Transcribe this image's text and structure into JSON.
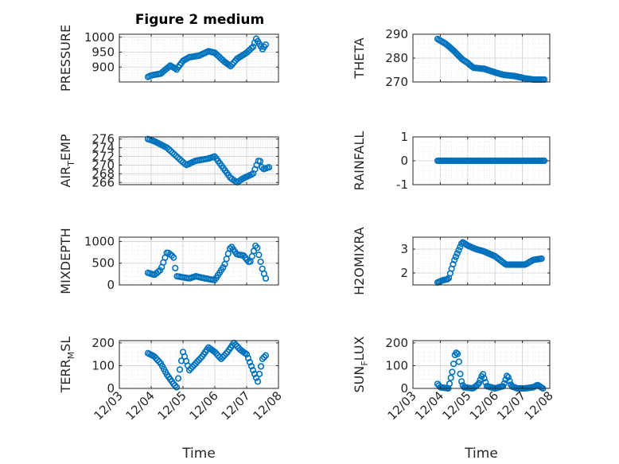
{
  "figure": {
    "title": "Figure 2 medium"
  },
  "style": {
    "marker_color": "#0072BD",
    "grid_color": "#dcdcdc",
    "axis_color": "#262626"
  },
  "chart_data": [
    {
      "type": "scatter",
      "name": "PRESSURE",
      "ylabel": {
        "main": "PRESSURE",
        "sub": "",
        "tail": ""
      },
      "ylim": [
        850,
        1010
      ],
      "yticks": [
        900,
        950,
        1000
      ],
      "ytick_labels": [
        "900",
        "950",
        "1000"
      ],
      "xlim": [
        0,
        5
      ],
      "xticks": [
        0,
        1,
        2,
        3,
        4,
        5
      ],
      "xtick_labels": [
        "12/03",
        "12/04",
        "12/05",
        "12/06",
        "12/07",
        "12/08"
      ],
      "show_xtick_labels": false,
      "xlabel": "",
      "grid": true,
      "knots": [
        [
          0.9,
          867
        ],
        [
          1.0,
          872
        ],
        [
          1.3,
          878
        ],
        [
          1.6,
          905
        ],
        [
          1.8,
          892
        ],
        [
          2.0,
          921
        ],
        [
          2.2,
          933
        ],
        [
          2.5,
          938
        ],
        [
          2.8,
          953
        ],
        [
          3.0,
          948
        ],
        [
          3.3,
          918
        ],
        [
          3.5,
          903
        ],
        [
          3.7,
          928
        ],
        [
          4.0,
          948
        ],
        [
          4.2,
          968
        ],
        [
          4.3,
          995
        ],
        [
          4.5,
          960
        ],
        [
          4.6,
          975
        ]
      ],
      "n_points": 75
    },
    {
      "type": "scatter",
      "name": "THETA",
      "ylabel": {
        "main": "THETA",
        "sub": "",
        "tail": ""
      },
      "ylim": [
        270,
        290
      ],
      "yticks": [
        270,
        280,
        290
      ],
      "ytick_labels": [
        "270",
        "280",
        "290"
      ],
      "xlim": [
        0,
        5
      ],
      "xticks": [
        0,
        1,
        2,
        3,
        4,
        5
      ],
      "xtick_labels": [
        "12/03",
        "12/04",
        "12/05",
        "12/06",
        "12/07",
        "12/08"
      ],
      "show_xtick_labels": false,
      "xlabel": "",
      "grid": true,
      "knots": [
        [
          0.9,
          288
        ],
        [
          1.2,
          286
        ],
        [
          1.5,
          283
        ],
        [
          1.8,
          279.5
        ],
        [
          2.0,
          278
        ],
        [
          2.2,
          276
        ],
        [
          2.6,
          275.5
        ],
        [
          3.0,
          274
        ],
        [
          3.3,
          273
        ],
        [
          3.7,
          272.5
        ],
        [
          4.1,
          271.5
        ],
        [
          4.4,
          271
        ],
        [
          4.8,
          271
        ]
      ],
      "n_points": 75
    },
    {
      "type": "scatter",
      "name": "AIR_TEMP",
      "ylabel": {
        "main": "AIR",
        "sub": "T",
        "tail": "EMP"
      },
      "ylim": [
        265.5,
        276.5
      ],
      "yticks": [
        266,
        268,
        270,
        272,
        274,
        276
      ],
      "ytick_labels": [
        "266",
        "268",
        "270",
        "272",
        "274",
        "276"
      ],
      "xlim": [
        0,
        5
      ],
      "xticks": [
        0,
        1,
        2,
        3,
        4,
        5
      ],
      "xtick_labels": [
        "12/03",
        "12/04",
        "12/05",
        "12/06",
        "12/07",
        "12/08"
      ],
      "show_xtick_labels": false,
      "xlabel": "",
      "grid": true,
      "knots": [
        [
          0.9,
          276
        ],
        [
          1.1,
          275.5
        ],
        [
          1.5,
          274
        ],
        [
          1.8,
          272
        ],
        [
          2.1,
          270
        ],
        [
          2.4,
          271
        ],
        [
          2.8,
          271.5
        ],
        [
          3.0,
          272
        ],
        [
          3.2,
          270
        ],
        [
          3.5,
          267
        ],
        [
          3.7,
          266
        ],
        [
          3.9,
          267
        ],
        [
          4.2,
          268
        ],
        [
          4.4,
          271.5
        ],
        [
          4.5,
          269
        ],
        [
          4.7,
          269.5
        ]
      ],
      "n_points": 70
    },
    {
      "type": "scatter",
      "name": "RAINFALL",
      "ylabel": {
        "main": "RAINFALL",
        "sub": "",
        "tail": ""
      },
      "ylim": [
        -1,
        1
      ],
      "yticks": [
        -1,
        0,
        1
      ],
      "ytick_labels": [
        "-1",
        "0",
        "1"
      ],
      "xlim": [
        0,
        5
      ],
      "xticks": [
        0,
        1,
        2,
        3,
        4,
        5
      ],
      "xtick_labels": [
        "12/03",
        "12/04",
        "12/05",
        "12/06",
        "12/07",
        "12/08"
      ],
      "show_xtick_labels": false,
      "xlabel": "",
      "grid": true,
      "knots": [
        [
          0.9,
          0
        ],
        [
          4.8,
          0
        ]
      ],
      "n_points": 80
    },
    {
      "type": "scatter",
      "name": "MIXDEPTH",
      "ylabel": {
        "main": "MIXDEPTH",
        "sub": "",
        "tail": ""
      },
      "ylim": [
        0,
        1100
      ],
      "yticks": [
        0,
        500,
        1000
      ],
      "ytick_labels": [
        "0",
        "500",
        "1000"
      ],
      "xlim": [
        0,
        5
      ],
      "xticks": [
        0,
        1,
        2,
        3,
        4,
        5
      ],
      "xtick_labels": [
        "12/03",
        "12/04",
        "12/05",
        "12/06",
        "12/07",
        "12/08"
      ],
      "show_xtick_labels": false,
      "xlabel": "",
      "grid": true,
      "knots": [
        [
          0.9,
          280
        ],
        [
          1.1,
          230
        ],
        [
          1.3,
          350
        ],
        [
          1.5,
          760
        ],
        [
          1.7,
          650
        ],
        [
          1.8,
          200
        ],
        [
          2.2,
          150
        ],
        [
          2.4,
          200
        ],
        [
          2.7,
          150
        ],
        [
          3.0,
          110
        ],
        [
          3.3,
          450
        ],
        [
          3.5,
          900
        ],
        [
          3.7,
          700
        ],
        [
          3.9,
          680
        ],
        [
          4.1,
          500
        ],
        [
          4.3,
          950
        ],
        [
          4.5,
          350
        ],
        [
          4.6,
          150
        ]
      ],
      "n_points": 70
    },
    {
      "type": "scatter",
      "name": "H2OMIXRA",
      "ylabel": {
        "main": "H2OMIXRA",
        "sub": "",
        "tail": ""
      },
      "ylim": [
        1.5,
        3.5
      ],
      "yticks": [
        2,
        3
      ],
      "ytick_labels": [
        "2",
        "3"
      ],
      "xlim": [
        0,
        5
      ],
      "xticks": [
        0,
        1,
        2,
        3,
        4,
        5
      ],
      "xtick_labels": [
        "12/03",
        "12/04",
        "12/05",
        "12/06",
        "12/07",
        "12/08"
      ],
      "show_xtick_labels": false,
      "xlabel": "",
      "grid": true,
      "knots": [
        [
          0.9,
          1.6
        ],
        [
          1.1,
          1.7
        ],
        [
          1.3,
          1.75
        ],
        [
          1.5,
          2.5
        ],
        [
          1.8,
          3.3
        ],
        [
          2.0,
          3.15
        ],
        [
          2.3,
          3.0
        ],
        [
          2.6,
          2.9
        ],
        [
          3.0,
          2.7
        ],
        [
          3.4,
          2.35
        ],
        [
          3.8,
          2.35
        ],
        [
          4.1,
          2.35
        ],
        [
          4.4,
          2.55
        ],
        [
          4.7,
          2.6
        ]
      ],
      "n_points": 75
    },
    {
      "type": "scatter",
      "name": "TERR_MSL",
      "ylabel": {
        "main": "TERR",
        "sub": "M",
        "tail": "SL"
      },
      "ylim": [
        0,
        210
      ],
      "yticks": [
        0,
        100,
        200
      ],
      "ytick_labels": [
        "0",
        "100",
        "200"
      ],
      "xlim": [
        0,
        5
      ],
      "xticks": [
        0,
        1,
        2,
        3,
        4,
        5
      ],
      "xtick_labels": [
        "12/03",
        "12/04",
        "12/05",
        "12/06",
        "12/07",
        "12/08"
      ],
      "show_xtick_labels": true,
      "xlabel": "Time",
      "grid": true,
      "knots": [
        [
          0.9,
          155
        ],
        [
          1.1,
          140
        ],
        [
          1.3,
          110
        ],
        [
          1.5,
          60
        ],
        [
          1.7,
          20
        ],
        [
          1.8,
          5
        ],
        [
          2.0,
          160
        ],
        [
          2.2,
          80
        ],
        [
          2.4,
          110
        ],
        [
          2.6,
          140
        ],
        [
          2.8,
          180
        ],
        [
          3.0,
          160
        ],
        [
          3.2,
          130
        ],
        [
          3.4,
          160
        ],
        [
          3.6,
          200
        ],
        [
          3.8,
          170
        ],
        [
          4.0,
          150
        ],
        [
          4.2,
          80
        ],
        [
          4.35,
          30
        ],
        [
          4.5,
          130
        ],
        [
          4.6,
          145
        ]
      ],
      "n_points": 75
    },
    {
      "type": "scatter",
      "name": "SUN_FLUX",
      "ylabel": {
        "main": "SUN",
        "sub": "F",
        "tail": "LUX"
      },
      "ylim": [
        0,
        210
      ],
      "yticks": [
        0,
        100,
        200
      ],
      "ytick_labels": [
        "0",
        "100",
        "200"
      ],
      "xlim": [
        0,
        5
      ],
      "xticks": [
        0,
        1,
        2,
        3,
        4,
        5
      ],
      "xtick_labels": [
        "12/03",
        "12/04",
        "12/05",
        "12/06",
        "12/07",
        "12/08"
      ],
      "show_xtick_labels": true,
      "xlabel": "Time",
      "grid": true,
      "knots": [
        [
          0.9,
          20
        ],
        [
          1.0,
          5
        ],
        [
          1.3,
          0
        ],
        [
          1.45,
          80
        ],
        [
          1.55,
          160
        ],
        [
          1.65,
          150
        ],
        [
          1.75,
          40
        ],
        [
          1.85,
          5
        ],
        [
          2.2,
          0
        ],
        [
          2.4,
          20
        ],
        [
          2.55,
          65
        ],
        [
          2.7,
          10
        ],
        [
          3.0,
          0
        ],
        [
          3.3,
          10
        ],
        [
          3.45,
          60
        ],
        [
          3.6,
          10
        ],
        [
          3.8,
          0
        ],
        [
          4.1,
          0
        ],
        [
          4.4,
          5
        ],
        [
          4.55,
          15
        ],
        [
          4.75,
          0
        ]
      ],
      "n_points": 80
    }
  ]
}
